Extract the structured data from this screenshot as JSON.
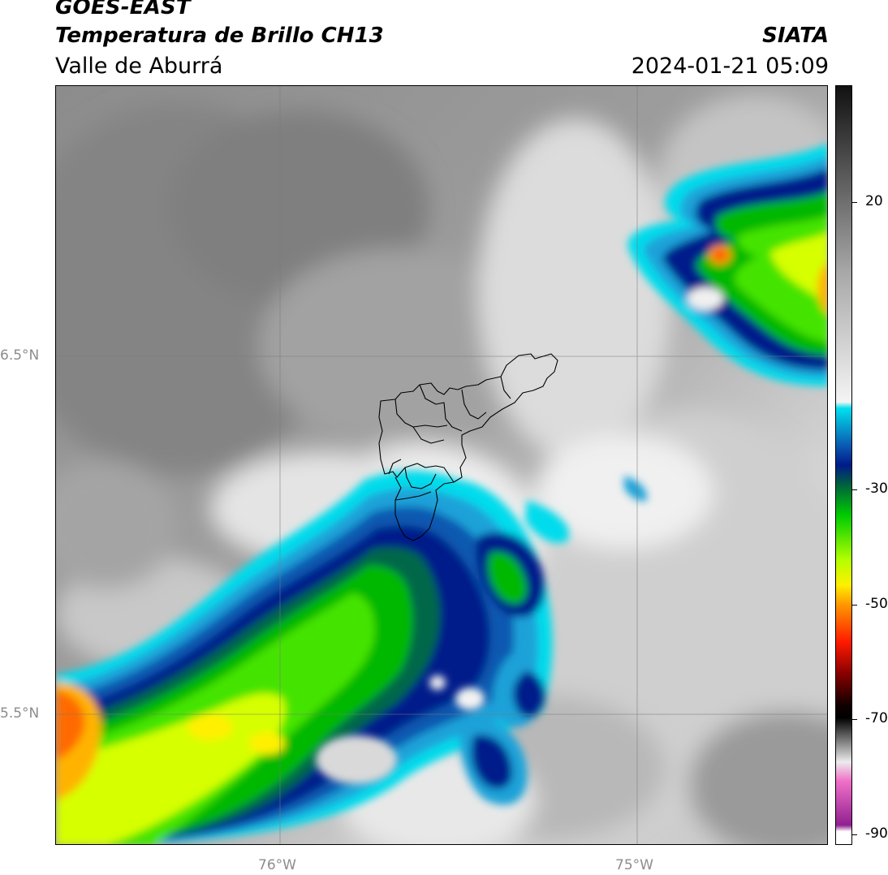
{
  "header": {
    "satellite": "GOES-EAST",
    "product": "Temperatura de Brillo CH13",
    "region": "Valle de Aburrá",
    "organization": "SIATA",
    "timestamp": "2024-01-21 05:09"
  },
  "map": {
    "lat_labels": [
      "6.5°N",
      "5.5°N"
    ],
    "lon_labels": [
      "76°W",
      "75°W"
    ],
    "features": [
      "cloud-top-temperature-field",
      "convective-cloud-band-southwest",
      "convective-cluster-northeast",
      "valle-de-aburra-municipal-boundaries",
      "graticule"
    ]
  },
  "colorbar": {
    "labels": [
      "20",
      "-30",
      "-50",
      "-70",
      "-90"
    ],
    "stops": [
      {
        "t": 30,
        "color": "#111111"
      },
      {
        "t": 0,
        "color": "#aaaaaa"
      },
      {
        "t": -20,
        "color": "#f4f4f4"
      },
      {
        "t": -21,
        "color": "#00e0ee"
      },
      {
        "t": -27,
        "color": "#0a58b0"
      },
      {
        "t": -30,
        "color": "#001a8a"
      },
      {
        "t": -33,
        "color": "#005e40"
      },
      {
        "t": -38,
        "color": "#00cc00"
      },
      {
        "t": -45,
        "color": "#b4ff00"
      },
      {
        "t": -49,
        "color": "#fff000"
      },
      {
        "t": -52,
        "color": "#ff9a00"
      },
      {
        "t": -58,
        "color": "#ff1a00"
      },
      {
        "t": -63,
        "color": "#880000"
      },
      {
        "t": -68,
        "color": "#110000"
      },
      {
        "t": -70,
        "color": "#000000"
      },
      {
        "t": -77,
        "color": "#ececec"
      },
      {
        "t": -80,
        "color": "#f070c8"
      },
      {
        "t": -87,
        "color": "#902090"
      },
      {
        "t": -88,
        "color": "#ffffff"
      },
      {
        "t": -90,
        "color": "#ffffff"
      }
    ]
  },
  "colors": {
    "warm_background": "#8a8a8a",
    "cold_cloud_edge": "#00d5ea",
    "deep_convection": "#001a8a",
    "coldest_core": "#ff9a00"
  }
}
